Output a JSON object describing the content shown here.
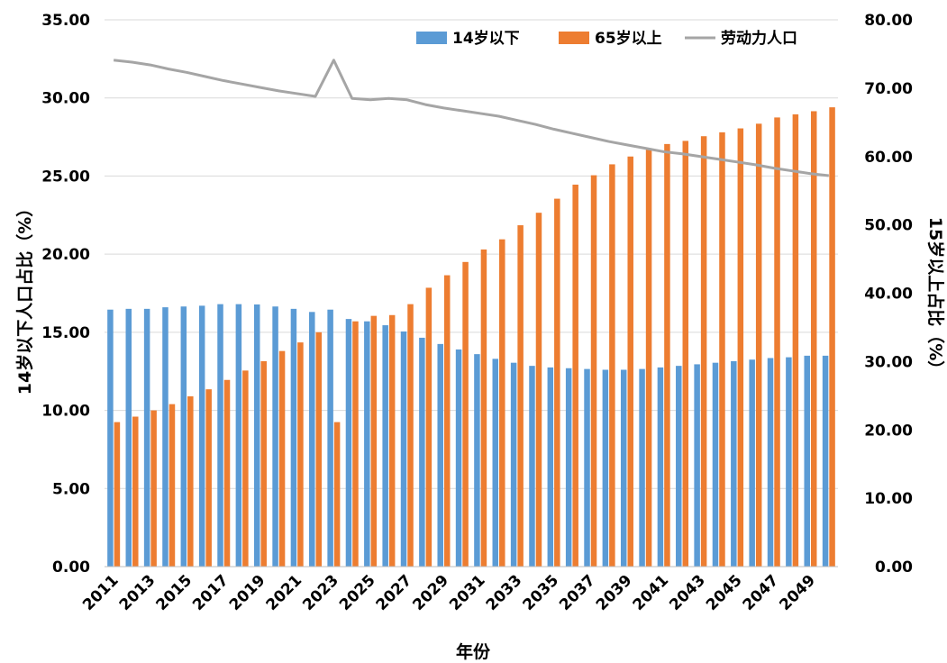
{
  "chart_data": {
    "type": "bar",
    "title": "",
    "xlabel": "年份",
    "ylabel_left": "14岁以下人口占比（%）",
    "ylabel_right": "15岁以上占比（%）",
    "ylim_left": [
      0,
      35
    ],
    "ylim_right": [
      0,
      80
    ],
    "yticks_left": [
      "0.00",
      "5.00",
      "10.00",
      "15.00",
      "20.00",
      "25.00",
      "30.00",
      "35.00"
    ],
    "yticks_right": [
      "0.00",
      "10.00",
      "20.00",
      "30.00",
      "40.00",
      "50.00",
      "60.00",
      "70.00",
      "80.00"
    ],
    "grid": true,
    "legend_position": "top-right",
    "x": [
      2011,
      2012,
      2013,
      2014,
      2015,
      2016,
      2017,
      2018,
      2019,
      2020,
      2021,
      2022,
      2023,
      2024,
      2025,
      2026,
      2027,
      2028,
      2029,
      2030,
      2031,
      2032,
      2033,
      2034,
      2035,
      2036,
      2037,
      2038,
      2039,
      2040,
      2041,
      2042,
      2043,
      2044,
      2045,
      2046,
      2047,
      2048,
      2049,
      2050
    ],
    "x_tick_labels": [
      "2011",
      "2013",
      "2015",
      "2017",
      "2019",
      "2021",
      "2023",
      "2025",
      "2027",
      "2029",
      "2031",
      "2033",
      "2035",
      "2037",
      "2039",
      "2041",
      "2043",
      "2045",
      "2047",
      "2049"
    ],
    "series": [
      {
        "name": "14岁以下",
        "axis": "left",
        "kind": "bar",
        "color": "#5B9BD5",
        "values": [
          16.45,
          16.5,
          16.5,
          16.6,
          16.65,
          16.7,
          16.8,
          16.8,
          16.78,
          16.65,
          16.5,
          16.3,
          16.45,
          15.85,
          15.7,
          15.45,
          15.05,
          14.65,
          14.25,
          13.9,
          13.6,
          13.3,
          13.05,
          12.85,
          12.75,
          12.7,
          12.65,
          12.6,
          12.6,
          12.65,
          12.75,
          12.85,
          12.95,
          13.05,
          13.15,
          13.25,
          13.35,
          13.4,
          13.5,
          13.5
        ]
      },
      {
        "name": "65岁以上",
        "axis": "left",
        "kind": "bar",
        "color": "#ED7D31",
        "values": [
          9.25,
          9.6,
          10.0,
          10.4,
          10.9,
          11.35,
          11.95,
          12.55,
          13.15,
          13.8,
          14.35,
          15.0,
          9.25,
          15.7,
          16.05,
          16.1,
          16.8,
          17.85,
          18.65,
          19.5,
          20.3,
          20.95,
          21.85,
          22.65,
          23.55,
          24.45,
          25.05,
          25.75,
          26.25,
          26.7,
          27.05,
          27.25,
          27.55,
          27.8,
          28.05,
          28.35,
          28.75,
          28.95,
          29.15,
          29.4
        ]
      },
      {
        "name": "劳动力人口",
        "axis": "right",
        "kind": "line",
        "color": "#A5A5A5",
        "values": [
          74.1,
          73.8,
          73.4,
          72.8,
          72.3,
          71.7,
          71.1,
          70.6,
          70.1,
          69.6,
          69.2,
          68.8,
          74.1,
          68.5,
          68.3,
          68.5,
          68.3,
          67.6,
          67.1,
          66.7,
          66.3,
          65.9,
          65.3,
          64.7,
          64.0,
          63.4,
          62.8,
          62.2,
          61.7,
          61.2,
          60.7,
          60.4,
          60.0,
          59.6,
          59.2,
          58.8,
          58.3,
          57.9,
          57.5,
          57.2
        ]
      }
    ]
  }
}
